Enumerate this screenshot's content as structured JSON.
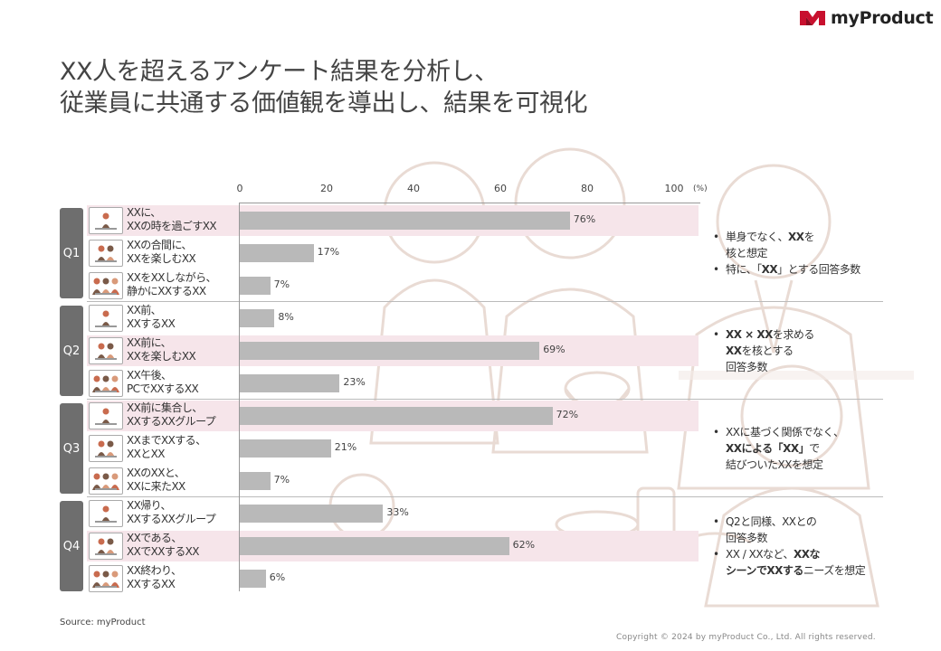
{
  "brand": {
    "name": "myProduct",
    "color": "#c8102e"
  },
  "title_lines": [
    "XX人を超えるアンケート結果を分析し、",
    "従業員に共通する価値観を導出し、結果を可視化"
  ],
  "chart_data": {
    "type": "bar",
    "orientation": "horizontal",
    "x_ticks": [
      "0",
      "20",
      "40",
      "60",
      "80",
      "100"
    ],
    "x_unit": "(%)",
    "xlim": [
      0,
      100
    ],
    "groups": [
      {
        "name": "Q1",
        "items": [
          {
            "label": [
              "XXに、",
              "XXの時を過ごすXX"
            ],
            "value": 76,
            "display": "76%",
            "highlight": true
          },
          {
            "label": [
              "XXの合間に、",
              "XXを楽しむXX"
            ],
            "value": 17,
            "display": "17%",
            "highlight": false
          },
          {
            "label": [
              "XXをXXしながら、",
              "静かにXXするXX"
            ],
            "value": 7,
            "display": "7%",
            "highlight": false
          }
        ]
      },
      {
        "name": "Q2",
        "items": [
          {
            "label": [
              "XX前、",
              "XXするXX"
            ],
            "value": 8,
            "display": "8%",
            "highlight": false
          },
          {
            "label": [
              "XX前に、",
              "XXを楽しむXX"
            ],
            "value": 69,
            "display": "69%",
            "highlight": true
          },
          {
            "label": [
              "XX午後、",
              "PCでXXするXX"
            ],
            "value": 23,
            "display": "23%",
            "highlight": false
          }
        ]
      },
      {
        "name": "Q3",
        "items": [
          {
            "label": [
              "XX前に集合し、",
              "XXするXXグループ"
            ],
            "value": 72,
            "display": "72%",
            "highlight": true
          },
          {
            "label": [
              "XXまでXXする、",
              "XXとXX"
            ],
            "value": 21,
            "display": "21%",
            "highlight": false
          },
          {
            "label": [
              "XXのXXと、",
              "XXに来たXX"
            ],
            "value": 7,
            "display": "7%",
            "highlight": false
          }
        ]
      },
      {
        "name": "Q4",
        "items": [
          {
            "label": [
              "XX帰り、",
              "XXするXXグループ"
            ],
            "value": 33,
            "display": "33%",
            "highlight": false
          },
          {
            "label": [
              "XXである、",
              "XXでXXするXX"
            ],
            "value": 62,
            "display": "62%",
            "highlight": true
          },
          {
            "label": [
              "XX終わり、",
              "XXするXX"
            ],
            "value": 6,
            "display": "6%",
            "highlight": false
          }
        ]
      }
    ],
    "highlight_color": "#f6e5ea",
    "bar_color": "#b9b9b9"
  },
  "notes": [
    {
      "group": "Q1",
      "bullets": [
        [
          [
            {
              "t": "単身でなく、",
              "b": false
            },
            {
              "t": "XX",
              "b": true
            },
            {
              "t": "を",
              "b": false
            }
          ],
          [
            {
              "t": "核と想定",
              "b": false
            }
          ]
        ],
        [
          [
            {
              "t": "特に、「",
              "b": false
            },
            {
              "t": "XX",
              "b": true
            },
            {
              "t": "」とする回答多数",
              "b": false
            }
          ]
        ]
      ]
    },
    {
      "group": "Q2",
      "bullets": [
        [
          [
            {
              "t": "XX × XX",
              "b": true
            },
            {
              "t": "を求める",
              "b": false
            }
          ],
          [
            {
              "t": "XX",
              "b": true
            },
            {
              "t": "を核とする",
              "b": false
            }
          ],
          [
            {
              "t": "回答多数",
              "b": false
            }
          ]
        ]
      ]
    },
    {
      "group": "Q3",
      "bullets": [
        [
          [
            {
              "t": "XXに基づく関係でなく、",
              "b": false
            }
          ],
          [
            {
              "t": "XXによる「XX」",
              "b": true
            },
            {
              "t": "で",
              "b": false
            }
          ],
          [
            {
              "t": "結びついたXXを想定",
              "b": false
            }
          ]
        ]
      ]
    },
    {
      "group": "Q4",
      "bullets": [
        [
          [
            {
              "t": "Q2と同様、XXとの",
              "b": false
            }
          ],
          [
            {
              "t": "回答多数",
              "b": false
            }
          ]
        ],
        [
          [
            {
              "t": "XX / XXなど、",
              "b": false
            },
            {
              "t": "XXな",
              "b": true
            }
          ],
          [
            {
              "t": "シーンでXXする",
              "b": true
            },
            {
              "t": "ニーズを想定",
              "b": false
            }
          ]
        ]
      ]
    }
  ],
  "bullet_char": "•",
  "source": "Source: myProduct",
  "copyright": "Copyright © 2024 by myProduct Co., Ltd.  All rights reserved."
}
